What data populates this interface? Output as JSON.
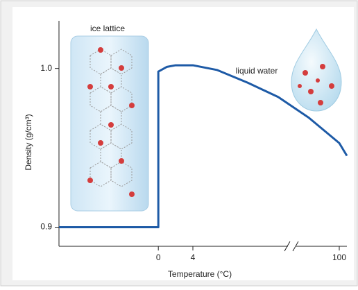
{
  "chart_data": {
    "type": "line",
    "x_label": "Temperature (°C)",
    "y_label": "Density (g/cm³)",
    "annotations": [
      "ice lattice",
      "liquid water"
    ],
    "x": [
      -11.5,
      0,
      0,
      1,
      2,
      4,
      20,
      40,
      60,
      80,
      100,
      105
    ],
    "values": [
      0.9,
      0.9,
      0.998,
      1.001,
      1.002,
      1.002,
      0.999,
      0.991,
      0.982,
      0.969,
      0.953,
      0.945
    ],
    "color": "#1d5aa6",
    "xlim": [
      -11.5,
      105
    ],
    "xticks": [
      0,
      4,
      100
    ],
    "ylim": [
      0.888,
      1.03
    ],
    "yticks": [
      0.9,
      {
        "value": 1,
        "label": "1.0"
      }
    ],
    "axis_break": true
  }
}
